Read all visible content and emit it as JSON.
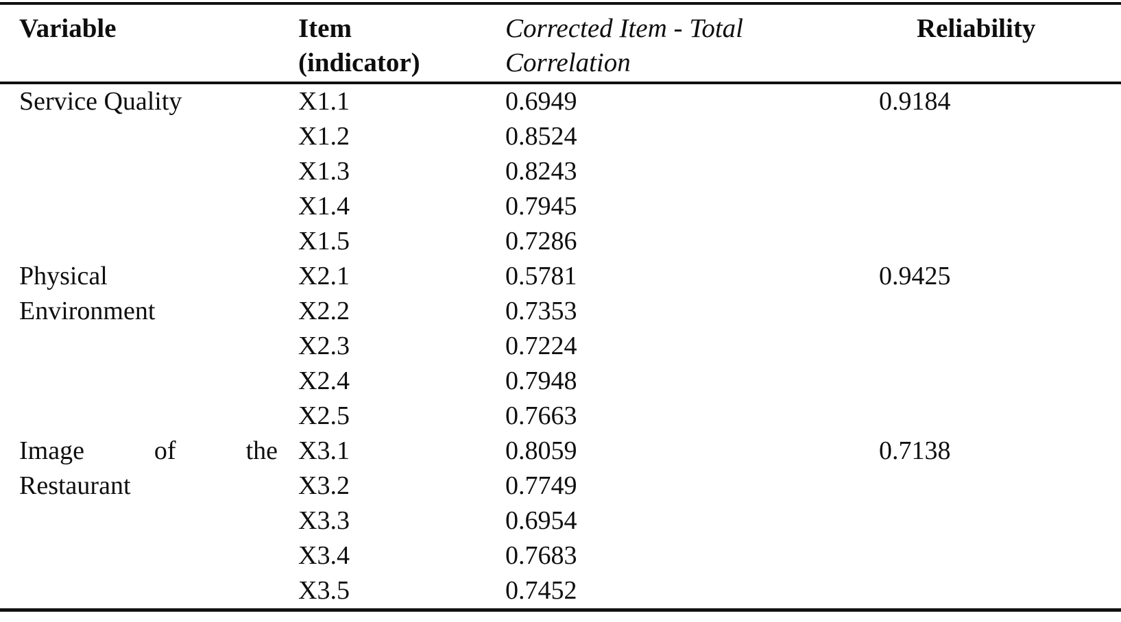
{
  "page": {
    "background_color": "#ffffff",
    "text_color": "#0e0e0e",
    "rule_color": "#111111"
  },
  "table": {
    "header": {
      "variable": "Variable",
      "item": [
        "Item",
        "(indicator)"
      ],
      "corrected_item_total": [
        "Corrected Item - Total",
        "Correlation"
      ],
      "reliability": "Reliability"
    },
    "rows": [
      {
        "variable": "Service Quality",
        "item": "X1.1",
        "corrected_item_total_correlation": "0.6949",
        "reliability": "0.9184"
      },
      {
        "variable": "",
        "item": "X1.2",
        "corrected_item_total_correlation": "0.8524",
        "reliability": ""
      },
      {
        "variable": "",
        "item": "X1.3",
        "corrected_item_total_correlation": "0.8243",
        "reliability": ""
      },
      {
        "variable": "",
        "item": "X1.4",
        "corrected_item_total_correlation": "0.7945",
        "reliability": ""
      },
      {
        "variable": "",
        "item": "X1.5",
        "corrected_item_total_correlation": "0.7286",
        "reliability": ""
      },
      {
        "variable": "Physical",
        "item": "X2.1",
        "corrected_item_total_correlation": "0.5781",
        "reliability": "0.9425"
      },
      {
        "variable": "Environment",
        "item": "X2.2",
        "corrected_item_total_correlation": "0.7353",
        "reliability": ""
      },
      {
        "variable": "",
        "item": "X2.3",
        "corrected_item_total_correlation": "0.7224",
        "reliability": ""
      },
      {
        "variable": "",
        "item": "X2.4",
        "corrected_item_total_correlation": "0.7948",
        "reliability": ""
      },
      {
        "variable": "",
        "item": "X2.5",
        "corrected_item_total_correlation": "0.7663",
        "reliability": ""
      },
      {
        "variable": "Image of the",
        "item": "X3.1",
        "corrected_item_total_correlation": "0.8059",
        "reliability": "0.7138"
      },
      {
        "variable": "Restaurant",
        "item": "X3.2",
        "corrected_item_total_correlation": "0.7749",
        "reliability": ""
      },
      {
        "variable": "",
        "item": "X3.3",
        "corrected_item_total_correlation": "0.6954",
        "reliability": ""
      },
      {
        "variable": "",
        "item": "X3.4",
        "corrected_item_total_correlation": "0.7683",
        "reliability": ""
      },
      {
        "variable": "",
        "item": "X3.5",
        "corrected_item_total_correlation": "0.7452",
        "reliability": ""
      }
    ]
  }
}
